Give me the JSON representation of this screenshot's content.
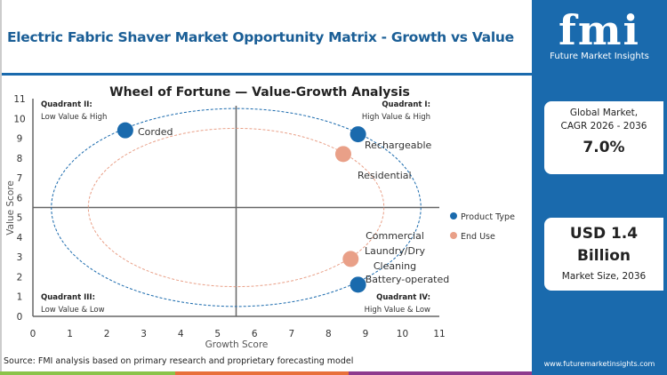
{
  "header": {
    "title": "Electric Fabric Shaver Market Opportunity Matrix - Growth vs Value"
  },
  "sidebar": {
    "logo_text": "fmi",
    "logo_subtitle": "Future Market Insights",
    "cagr_label_1": "Global Market,",
    "cagr_label_2": "CAGR 2026 - 2036",
    "cagr_value": "7.0%",
    "size_value_1": "USD 1.4",
    "size_value_2": "Billion",
    "size_label": "Market Size, 2036",
    "url": "www.futuremarketinsights.com"
  },
  "footer": {
    "source": "Source: FMI analysis based on primary research and proprietary forecasting model"
  },
  "colors": {
    "product_type": "#1a6aad",
    "end_use": "#e9a088",
    "brand": "#1a6aad",
    "bar_green": "#8bc34a",
    "bar_orange": "#e8703a",
    "bar_purple": "#8e3a8e"
  },
  "chart_data": {
    "type": "scatter",
    "title": "Wheel of Fortune — Value-Growth  Analysis",
    "xlabel": "Growth Score",
    "ylabel": "Value Score",
    "xlim": [
      0,
      11
    ],
    "ylim": [
      0,
      11
    ],
    "xticks": [
      "0",
      "1",
      "2",
      "3",
      "4",
      "5",
      "6",
      "7",
      "8",
      "9",
      "10",
      "11"
    ],
    "yticks": [
      "0",
      "1",
      "2",
      "3",
      "4",
      "5",
      "6",
      "7",
      "8",
      "9",
      "10",
      "11"
    ],
    "dividers": {
      "x": 5.5,
      "y": 5.5
    },
    "legend_position": "right",
    "quadrants": [
      {
        "title": "Quadrant II:",
        "subtitle": "Low Value & High",
        "corner": "top-left"
      },
      {
        "title": "Quadrant I:",
        "subtitle": "High Value & High",
        "corner": "top-right"
      },
      {
        "title": "Quadrant III:",
        "subtitle": "Low Value & Low",
        "corner": "bottom-left"
      },
      {
        "title": "Quadrant IV:",
        "subtitle": "High Value & Low",
        "corner": "bottom-right"
      }
    ],
    "series": [
      {
        "name": "Product Type",
        "color": "#1a6aad",
        "ring": {
          "cx": 5.5,
          "cy": 5.5,
          "r": 5
        },
        "points": [
          {
            "label": "Corded",
            "x": 2.5,
            "y": 9.4
          },
          {
            "label": "Rechargeable",
            "x": 8.8,
            "y": 9.2
          },
          {
            "label": "Battery-operated",
            "x": 8.8,
            "y": 1.6
          }
        ]
      },
      {
        "name": "End Use",
        "color": "#e9a088",
        "ring": {
          "cx": 5.5,
          "cy": 5.5,
          "r": 4
        },
        "points": [
          {
            "label": "Residential",
            "x": 8.4,
            "y": 8.2
          },
          {
            "label": "Commercial Laundry/Dry Cleaning",
            "x": 8.6,
            "y": 2.9
          }
        ]
      }
    ]
  }
}
